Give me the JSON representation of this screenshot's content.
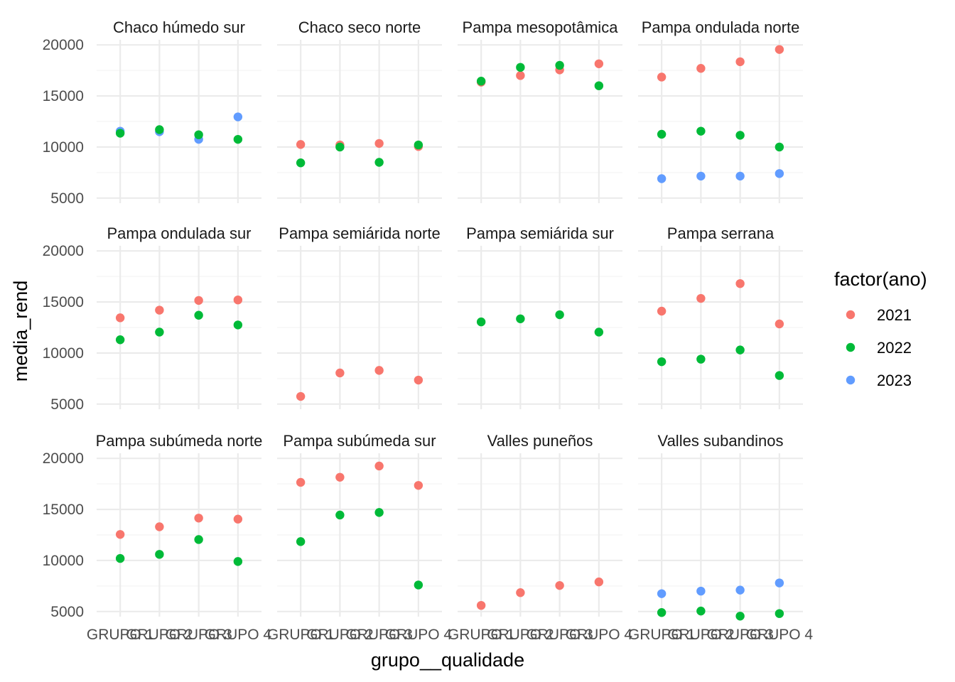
{
  "chart_data": {
    "type": "scatter",
    "xlabel": "grupo__qualidade",
    "ylabel": "media_rend",
    "ylim": [
      4500,
      20500
    ],
    "y_ticks": [
      5000,
      10000,
      15000,
      20000
    ],
    "y_tick_labels": [
      "5000",
      "10000",
      "15000",
      "20000"
    ],
    "x_categories": [
      "GRUPO 1",
      "GRUPO 2",
      "GRUPO 3",
      "GRUPO 4"
    ],
    "x_tick_labels_visible": "GRUPO ... CALIDAD 3 (overlapping labels)",
    "grid": true,
    "legend": {
      "title": "factor(ano)",
      "position": "right",
      "entries": [
        {
          "label": "2021",
          "color": "#F8766D"
        },
        {
          "label": "2022",
          "color": "#00BA38"
        },
        {
          "label": "2023",
          "color": "#619CFF"
        }
      ]
    },
    "facets": [
      {
        "title": "Chaco húmedo sur",
        "series": {
          "2021": [
            null,
            null,
            null,
            null
          ],
          "2022": [
            11350,
            11700,
            11200,
            10750
          ],
          "2023": [
            11550,
            11500,
            10750,
            12950
          ]
        }
      },
      {
        "title": "Chaco seco norte",
        "series": {
          "2021": [
            10250,
            10200,
            10350,
            10050
          ],
          "2022": [
            8450,
            10000,
            8500,
            10200
          ],
          "2023": [
            null,
            null,
            null,
            null
          ]
        }
      },
      {
        "title": "Pampa mesopotâmica",
        "series": {
          "2021": [
            16350,
            17000,
            17550,
            18150
          ],
          "2022": [
            16450,
            17800,
            18000,
            16000
          ],
          "2023": [
            null,
            null,
            null,
            null
          ]
        }
      },
      {
        "title": "Pampa ondulada norte",
        "series": {
          "2021": [
            16850,
            17700,
            18350,
            19550
          ],
          "2022": [
            11250,
            11550,
            11150,
            10000
          ],
          "2023": [
            6900,
            7150,
            7150,
            7400
          ]
        }
      },
      {
        "title": "Pampa ondulada sur",
        "series": {
          "2021": [
            13450,
            14200,
            15150,
            15200
          ],
          "2022": [
            11300,
            12050,
            13700,
            12750
          ],
          "2023": [
            null,
            null,
            null,
            null
          ]
        }
      },
      {
        "title": "Pampa semiárida norte",
        "series": {
          "2021": [
            5750,
            8050,
            8300,
            7350
          ],
          "2022": [
            null,
            null,
            null,
            null
          ],
          "2023": [
            null,
            null,
            null,
            null
          ]
        }
      },
      {
        "title": "Pampa semiárida sur",
        "series": {
          "2021": [
            null,
            null,
            null,
            null
          ],
          "2022": [
            13050,
            13350,
            13750,
            12050
          ],
          "2023": [
            null,
            null,
            null,
            null
          ]
        }
      },
      {
        "title": "Pampa serrana",
        "series": {
          "2021": [
            14100,
            15350,
            16800,
            12850
          ],
          "2022": [
            9150,
            9400,
            10300,
            7800
          ],
          "2023": [
            null,
            null,
            null,
            null
          ]
        }
      },
      {
        "title": "Pampa subúmeda norte",
        "series": {
          "2021": [
            12550,
            13300,
            14150,
            14050
          ],
          "2022": [
            10200,
            10600,
            12050,
            9900
          ],
          "2023": [
            null,
            null,
            null,
            null
          ]
        }
      },
      {
        "title": "Pampa subúmeda sur",
        "series": {
          "2021": [
            17650,
            18150,
            19250,
            17350
          ],
          "2022": [
            11850,
            14450,
            14700,
            7600
          ],
          "2023": [
            null,
            null,
            null,
            null
          ]
        }
      },
      {
        "title": "Valles puneños",
        "series": {
          "2021": [
            5600,
            6850,
            7550,
            7900
          ],
          "2022": [
            null,
            null,
            null,
            null
          ],
          "2023": [
            null,
            null,
            null,
            null
          ]
        }
      },
      {
        "title": "Valles subandinos",
        "series": {
          "2021": [
            null,
            null,
            null,
            null
          ],
          "2022": [
            4900,
            5050,
            4550,
            4800
          ],
          "2023": [
            6750,
            7000,
            7100,
            7800
          ]
        }
      }
    ]
  }
}
